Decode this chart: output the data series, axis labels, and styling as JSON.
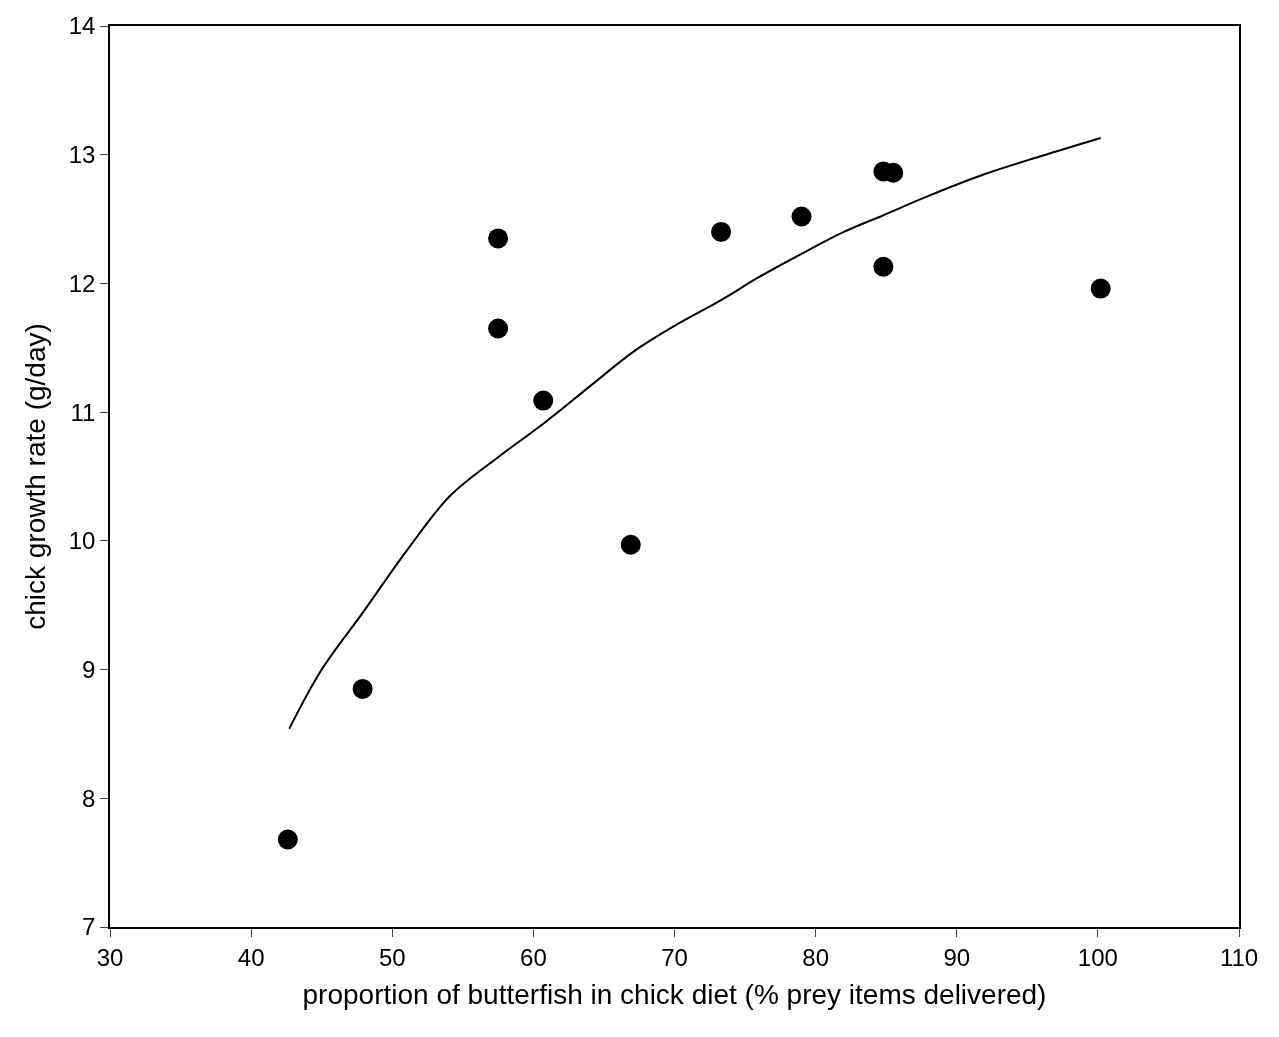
{
  "chart_data": {
    "type": "scatter",
    "xlabel": "proportion of butterfish in chick diet (% prey items delivered)",
    "ylabel": "chick growth rate (g/day)",
    "xlim": [
      30,
      110
    ],
    "xticks": [
      30,
      40,
      50,
      60,
      70,
      80,
      90,
      100,
      110
    ],
    "ylim": [
      7,
      14
    ],
    "yticks": [
      7,
      8,
      9,
      10,
      11,
      12,
      13,
      14
    ],
    "marker": "circle",
    "series": [
      {
        "color": "#000000",
        "x": [
          42.6,
          47.9,
          57.5,
          57.5,
          60.7,
          66.9,
          73.3,
          79.0,
          84.8,
          85.5,
          84.8,
          100.2
        ],
        "values": [
          7.68,
          8.85,
          12.35,
          11.65,
          11.09,
          9.97,
          12.4,
          12.52,
          12.87,
          12.86,
          12.13,
          11.96
        ]
      },
      {
        "type": "line",
        "color": "#000000",
        "marker": "none",
        "line_style": "solid",
        "x": [
          42.7,
          45,
          47.9,
          51,
          54.1,
          57.5,
          60.7,
          64,
          67.1,
          70,
          73.3,
          76,
          79.0,
          82,
          84.8,
          88,
          92,
          96,
          100.2
        ],
        "values": [
          8.54,
          9.0,
          9.44,
          9.92,
          10.35,
          10.65,
          10.91,
          11.2,
          11.47,
          11.67,
          11.87,
          12.05,
          12.23,
          12.4,
          12.53,
          12.68,
          12.85,
          12.99,
          13.13
        ]
      }
    ]
  }
}
